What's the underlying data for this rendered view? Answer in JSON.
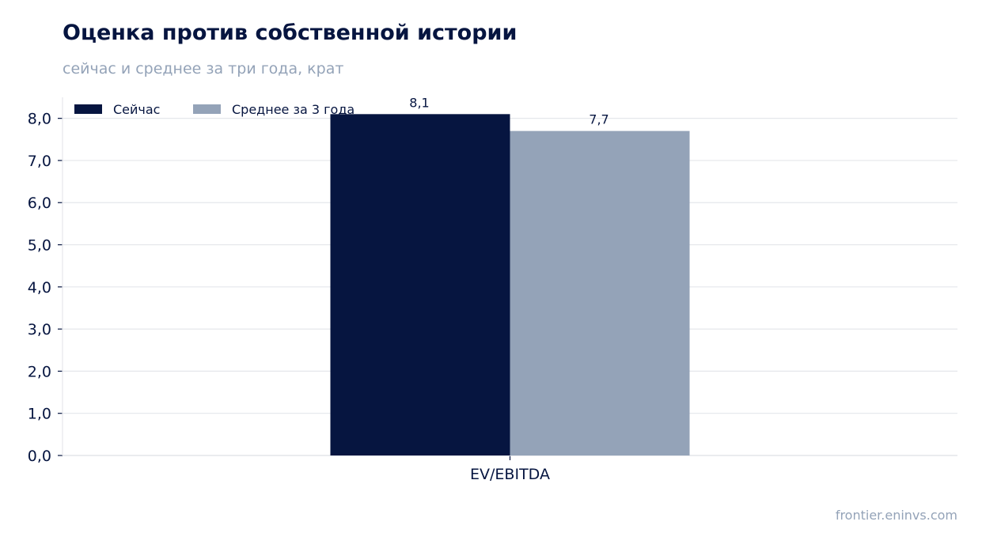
{
  "header": {
    "title": "Оценка против собственной истории",
    "subtitle": "сейчас и среднее за три года, крат"
  },
  "footer": {
    "source": "frontier.eninvs.com"
  },
  "colors": {
    "current": "#061540",
    "average": "#94a3b8",
    "grid": "#e5e7eb",
    "axis": "#cbd5e1"
  },
  "chart_data": {
    "type": "bar",
    "categories": [
      "EV/EBITDA"
    ],
    "series": [
      {
        "name": "Сейчас",
        "values": [
          8.1
        ],
        "labels": [
          "8,1"
        ]
      },
      {
        "name": "Среднее за 3 года",
        "values": [
          7.7
        ],
        "labels": [
          "7,7"
        ]
      }
    ],
    "ylim": [
      0,
      8.5
    ],
    "yticks": [
      0,
      1,
      2,
      3,
      4,
      5,
      6,
      7,
      8
    ],
    "ytick_labels": [
      "0,0",
      "1,0",
      "2,0",
      "3,0",
      "4,0",
      "5,0",
      "6,0",
      "7,0",
      "8,0"
    ],
    "grid": true,
    "legend": "top-left"
  }
}
